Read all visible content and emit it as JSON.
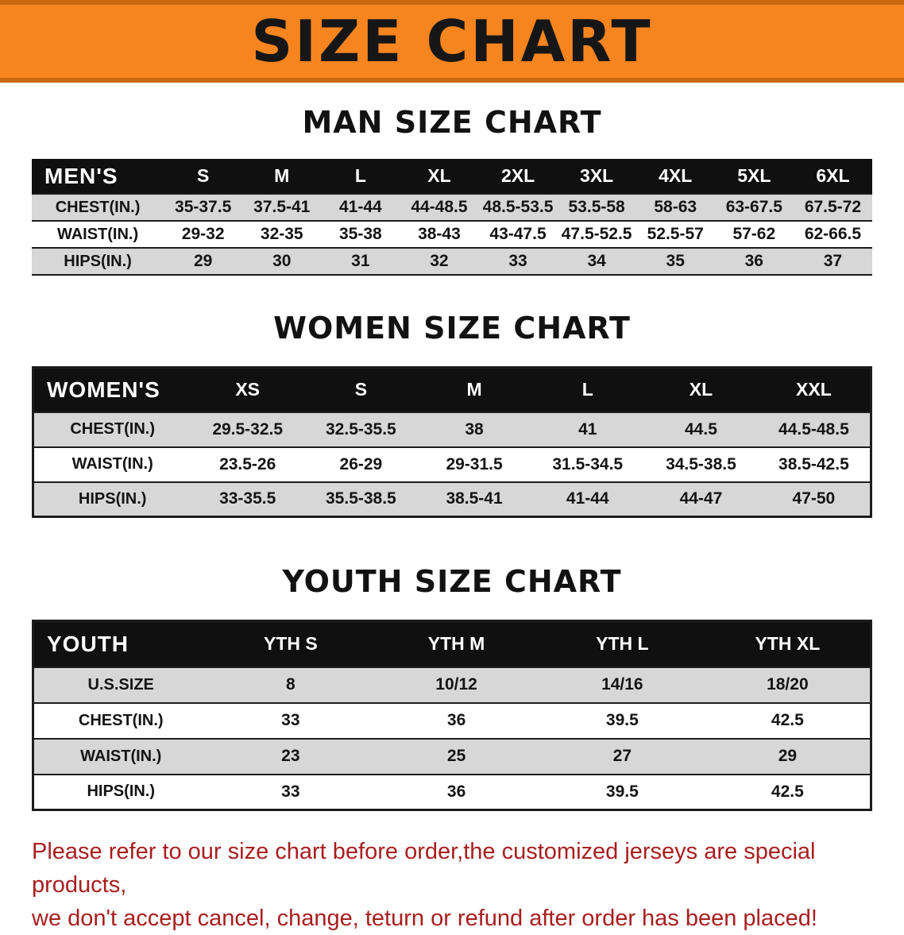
{
  "banner": {
    "title": "SIZE CHART",
    "bg_color": "#f6841f",
    "text_color": "#161616"
  },
  "sections": [
    {
      "heading": "MAN SIZE CHART",
      "table": {
        "header": [
          "MEN'S",
          "S",
          "M",
          "L",
          "XL",
          "2XL",
          "3XL",
          "4XL",
          "5XL",
          "6XL"
        ],
        "rows": [
          [
            "CHEST(IN.)",
            "35-37.5",
            "37.5-41",
            "41-44",
            "44-48.5",
            "48.5-53.5",
            "53.5-58",
            "58-63",
            "63-67.5",
            "67.5-72"
          ],
          [
            "WAIST(IN.)",
            "29-32",
            "32-35",
            "35-38",
            "38-43",
            "43-47.5",
            "47.5-52.5",
            "52.5-57",
            "57-62",
            "62-66.5"
          ],
          [
            "HIPS(IN.)",
            "29",
            "30",
            "31",
            "32",
            "33",
            "34",
            "35",
            "36",
            "37"
          ]
        ]
      }
    },
    {
      "heading": "WOMEN SIZE CHART",
      "table": {
        "header": [
          "WOMEN'S",
          "XS",
          "S",
          "M",
          "L",
          "XL",
          "XXL"
        ],
        "rows": [
          [
            "CHEST(IN.)",
            "29.5-32.5",
            "32.5-35.5",
            "38",
            "41",
            "44.5",
            "44.5-48.5"
          ],
          [
            "WAIST(IN.)",
            "23.5-26",
            "26-29",
            "29-31.5",
            "31.5-34.5",
            "34.5-38.5",
            "38.5-42.5"
          ],
          [
            "HIPS(IN.)",
            "33-35.5",
            "35.5-38.5",
            "38.5-41",
            "41-44",
            "44-47",
            "47-50"
          ]
        ]
      }
    },
    {
      "heading": "YOUTH SIZE CHART",
      "table": {
        "header": [
          "YOUTH",
          "YTH S",
          "YTH M",
          "YTH L",
          "YTH XL"
        ],
        "rows": [
          [
            "U.S.SIZE",
            "8",
            "10/12",
            "14/16",
            "18/20"
          ],
          [
            "CHEST(IN.)",
            "33",
            "36",
            "39.5",
            "42.5"
          ],
          [
            "WAIST(IN.)",
            "23",
            "25",
            "27",
            "29"
          ],
          [
            "HIPS(IN.)",
            "33",
            "36",
            "39.5",
            "42.5"
          ]
        ]
      }
    }
  ],
  "footer": {
    "line1": "Please refer to our size chart before order,the customized jerseys are special products,",
    "line2": "we don't accept cancel, change, teturn or refund after order has been placed!",
    "text_color": "#a81e1e"
  }
}
